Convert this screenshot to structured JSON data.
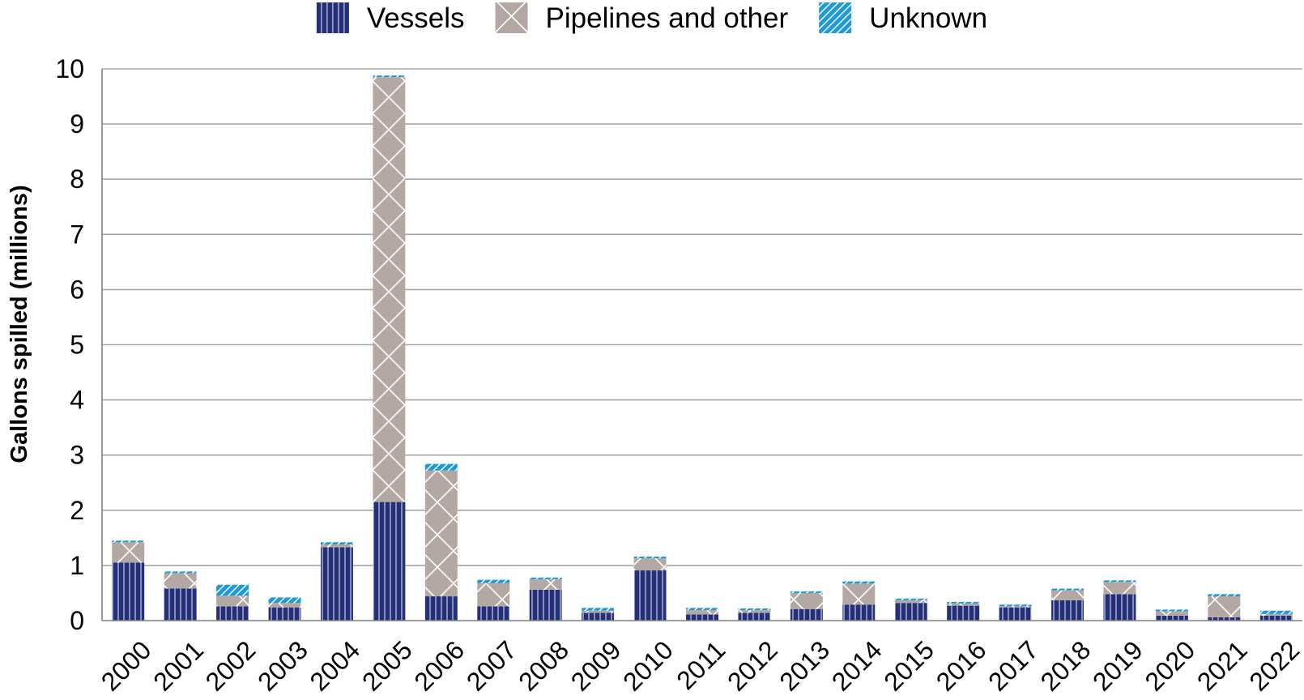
{
  "chart_data": {
    "type": "bar",
    "stacked": true,
    "title": "",
    "xlabel": "",
    "ylabel": "Gallons spilled (millions)",
    "ylim": [
      0,
      10
    ],
    "yticks": [
      "0",
      "1",
      "2",
      "3",
      "4",
      "5",
      "6",
      "7",
      "8",
      "9",
      "10"
    ],
    "grid": true,
    "legend_position": "top-center",
    "categories": [
      "2000",
      "2001",
      "2002",
      "2003",
      "2004",
      "2005",
      "2006",
      "2007",
      "2008",
      "2009",
      "2010",
      "2011",
      "2012",
      "2013",
      "2014",
      "2015",
      "2016",
      "2017",
      "2018",
      "2019",
      "2020",
      "2021",
      "2022"
    ],
    "series": [
      {
        "name": "Vessels",
        "color": "#24317a",
        "pattern": "vertical-lines",
        "values": [
          1.05,
          0.58,
          0.26,
          0.24,
          1.33,
          2.15,
          0.44,
          0.26,
          0.56,
          0.14,
          0.91,
          0.11,
          0.14,
          0.21,
          0.29,
          0.32,
          0.27,
          0.24,
          0.37,
          0.48,
          0.09,
          0.06,
          0.09
        ]
      },
      {
        "name": "Pipelines and other",
        "color": "#b3a8a3",
        "pattern": "crosshatch",
        "values": [
          0.37,
          0.28,
          0.19,
          0.08,
          0.05,
          7.7,
          2.28,
          0.42,
          0.19,
          0.04,
          0.22,
          0.08,
          0.05,
          0.29,
          0.38,
          0.05,
          0.04,
          0.02,
          0.18,
          0.22,
          0.08,
          0.38,
          0.03
        ]
      },
      {
        "name": "Unknown",
        "color": "#1e9bd7",
        "pattern": "diagonal-lines",
        "values": [
          0.03,
          0.03,
          0.2,
          0.1,
          0.04,
          0.03,
          0.12,
          0.06,
          0.03,
          0.05,
          0.03,
          0.04,
          0.03,
          0.03,
          0.04,
          0.03,
          0.03,
          0.03,
          0.03,
          0.03,
          0.03,
          0.04,
          0.06
        ]
      }
    ]
  }
}
